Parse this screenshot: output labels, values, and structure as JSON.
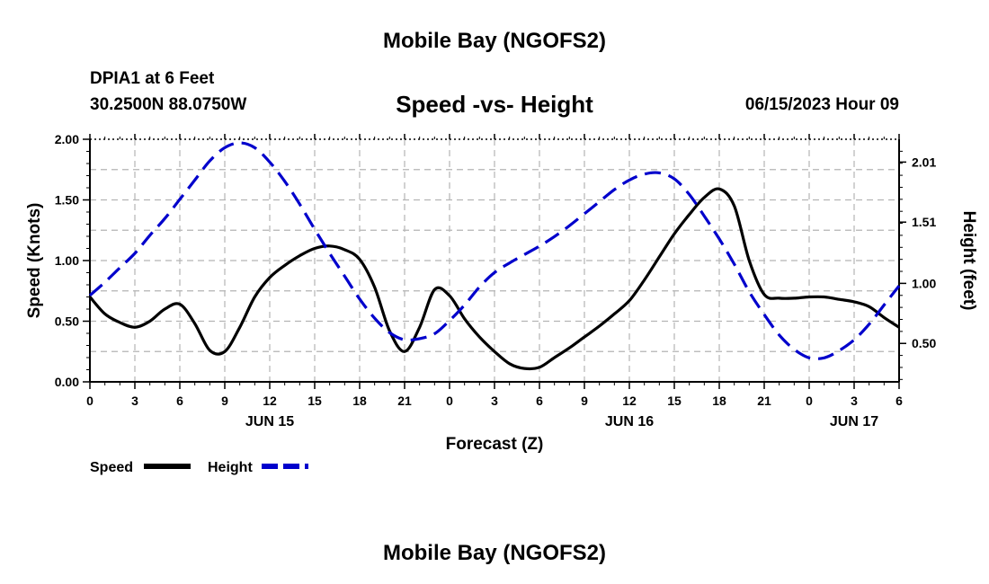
{
  "header": {
    "title": "Mobile Bay (NGOFS2)",
    "station": "DPIA1 at 6 Feet",
    "coords": "30.2500N  88.0750W",
    "subtitle": "Speed -vs- Height",
    "datetime": "06/15/2023 Hour 09"
  },
  "footer": {
    "title": "Mobile Bay (NGOFS2)"
  },
  "chart_data": {
    "type": "line",
    "xlabel": "Forecast (Z)",
    "x_tick_labels": [
      "0",
      "3",
      "6",
      "9",
      "12",
      "15",
      "18",
      "21",
      "0",
      "3",
      "6",
      "9",
      "12",
      "15",
      "18",
      "21",
      "0",
      "3",
      "6"
    ],
    "x_range_hours": [
      0,
      54
    ],
    "date_labels": [
      {
        "label": "JUN 15",
        "hour": 12
      },
      {
        "label": "JUN 16",
        "hour": 36
      },
      {
        "label": "JUN 17",
        "hour": 51
      }
    ],
    "ylabel_left": "Speed (Knots)",
    "ylim_left": [
      0,
      2
    ],
    "yticks_left": [
      "0.00",
      "0.50",
      "1.00",
      "1.50",
      "2.00"
    ],
    "ylabel_right": "Height (feet)",
    "ylim_right": [
      0.18,
      2.2
    ],
    "yticks_right": [
      {
        "label": "0.50",
        "value": 0.5
      },
      {
        "label": "1.00",
        "value": 1.0
      },
      {
        "label": "1.51",
        "value": 1.51
      },
      {
        "label": "2.01",
        "value": 2.01
      }
    ],
    "grid": true,
    "legend_position": "bottom-left",
    "series": [
      {
        "name": "Speed",
        "axis": "left",
        "color": "#000000",
        "dash": "solid",
        "x": [
          0,
          1,
          2,
          3,
          4,
          5,
          6,
          7,
          8,
          9,
          10,
          11,
          12,
          13,
          14,
          15,
          16,
          17,
          18,
          19,
          20,
          21,
          22,
          23,
          24,
          25,
          26,
          27,
          28,
          29,
          30,
          31,
          32,
          33,
          34,
          35,
          36,
          37,
          38,
          39,
          40,
          41,
          42,
          43,
          44,
          45,
          46,
          47,
          48,
          49,
          50,
          51,
          52,
          53,
          54
        ],
        "values": [
          0.7,
          0.56,
          0.49,
          0.45,
          0.5,
          0.6,
          0.64,
          0.48,
          0.26,
          0.25,
          0.45,
          0.7,
          0.86,
          0.96,
          1.04,
          1.1,
          1.12,
          1.09,
          1.01,
          0.78,
          0.42,
          0.25,
          0.45,
          0.76,
          0.71,
          0.52,
          0.37,
          0.25,
          0.15,
          0.11,
          0.12,
          0.2,
          0.28,
          0.37,
          0.46,
          0.56,
          0.67,
          0.84,
          1.03,
          1.22,
          1.38,
          1.52,
          1.59,
          1.45,
          1.0,
          0.72,
          0.69,
          0.69,
          0.7,
          0.7,
          0.68,
          0.66,
          0.62,
          0.53,
          0.45
        ]
      },
      {
        "name": "Height",
        "axis": "right",
        "color": "#0000cc",
        "dash": "dashed",
        "x": [
          0,
          1,
          2,
          3,
          4,
          5,
          6,
          7,
          8,
          9,
          10,
          11,
          12,
          13,
          14,
          15,
          16,
          17,
          18,
          19,
          20,
          21,
          22,
          23,
          24,
          25,
          26,
          27,
          28,
          29,
          30,
          31,
          32,
          33,
          34,
          35,
          36,
          37,
          38,
          39,
          40,
          41,
          42,
          43,
          44,
          45,
          46,
          47,
          48,
          49,
          50,
          51,
          52,
          53,
          54
        ],
        "values": [
          0.9,
          1.01,
          1.13,
          1.25,
          1.4,
          1.54,
          1.7,
          1.86,
          2.02,
          2.13,
          2.17,
          2.13,
          2.01,
          1.85,
          1.66,
          1.45,
          1.25,
          1.06,
          0.87,
          0.71,
          0.59,
          0.53,
          0.54,
          0.58,
          0.69,
          0.82,
          0.97,
          1.09,
          1.17,
          1.24,
          1.31,
          1.39,
          1.48,
          1.58,
          1.68,
          1.78,
          1.86,
          1.91,
          1.92,
          1.87,
          1.74,
          1.56,
          1.37,
          1.16,
          0.93,
          0.74,
          0.57,
          0.45,
          0.38,
          0.38,
          0.44,
          0.53,
          0.66,
          0.82,
          0.98
        ]
      }
    ]
  }
}
